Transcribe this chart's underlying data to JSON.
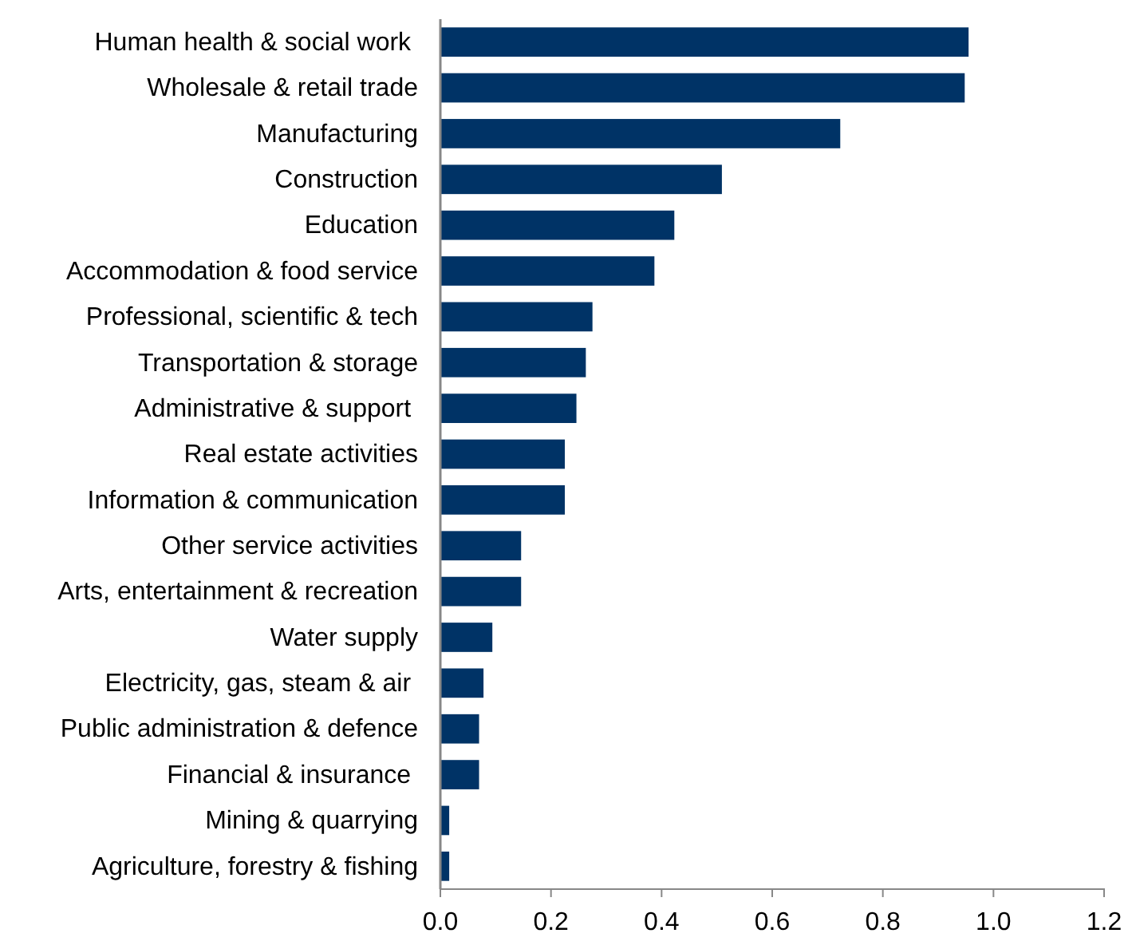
{
  "chart_data": {
    "type": "bar",
    "orientation": "horizontal",
    "categories": [
      "Human health & social work ",
      "Wholesale & retail trade",
      "Manufacturing",
      "Construction",
      "Education",
      "Accommodation & food service",
      "Professional, scientific & tech",
      "Transportation & storage",
      "Administrative & support ",
      "Real estate activities",
      "Information & communication",
      "Other service activities",
      "Arts, entertainment & recreation",
      "Water supply",
      "Electricity, gas, steam & air ",
      "Public administration & defence",
      "Financial & insurance ",
      "Mining & quarrying",
      "Agriculture, forestry & fishing"
    ],
    "values": [
      0.955,
      0.948,
      0.723,
      0.509,
      0.423,
      0.387,
      0.275,
      0.263,
      0.246,
      0.225,
      0.225,
      0.146,
      0.146,
      0.094,
      0.078,
      0.07,
      0.07,
      0.016,
      0.016
    ],
    "color": "#003366",
    "xlim": [
      0,
      1.2
    ],
    "xticks": [
      {
        "value": 0,
        "label": "0.0"
      },
      {
        "value": 0.2,
        "label": "0.2"
      },
      {
        "value": 0.4,
        "label": "0.4"
      },
      {
        "value": 0.6,
        "label": "0.6"
      },
      {
        "value": 0.8,
        "label": "0.8"
      },
      {
        "value": 1,
        "label": "1.0"
      },
      {
        "value": 1.2,
        "label": "1.2"
      }
    ]
  }
}
